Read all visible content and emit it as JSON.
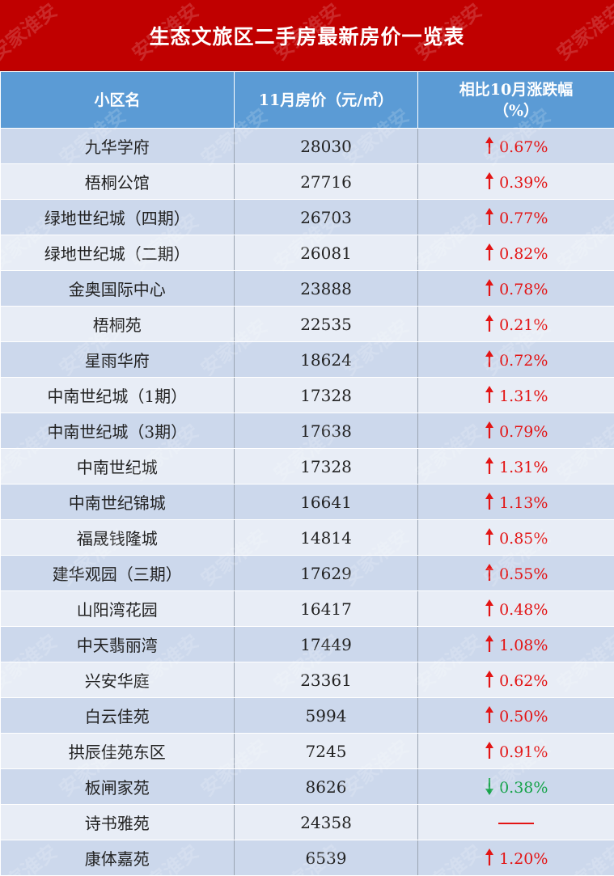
{
  "title": "生态文旅区二手房最新房价一览表",
  "headers": {
    "name": "小区名",
    "price": "11月房价（元/㎡）",
    "change_line1": "相比10月涨跌幅",
    "change_line2": "（%）"
  },
  "rows": [
    {
      "name": "九华学府",
      "price": "28030",
      "change": "0.67%",
      "direction": "up"
    },
    {
      "name": "梧桐公馆",
      "price": "27716",
      "change": "0.39%",
      "direction": "up"
    },
    {
      "name": "绿地世纪城（四期）",
      "price": "26703",
      "change": "0.77%",
      "direction": "up"
    },
    {
      "name": "绿地世纪城（二期）",
      "price": "26081",
      "change": "0.82%",
      "direction": "up"
    },
    {
      "name": "金奥国际中心",
      "price": "23888",
      "change": "0.78%",
      "direction": "up"
    },
    {
      "name": "梧桐苑",
      "price": "22535",
      "change": "0.21%",
      "direction": "up"
    },
    {
      "name": "星雨华府",
      "price": "18624",
      "change": "0.72%",
      "direction": "up"
    },
    {
      "name": "中南世纪城（1期）",
      "price": "17328",
      "change": "1.31%",
      "direction": "up"
    },
    {
      "name": "中南世纪城（3期）",
      "price": "17638",
      "change": "0.79%",
      "direction": "up"
    },
    {
      "name": "中南世纪城",
      "price": "17328",
      "change": "1.31%",
      "direction": "up"
    },
    {
      "name": "中南世纪锦城",
      "price": "16641",
      "change": "1.13%",
      "direction": "up"
    },
    {
      "name": "福晟钱隆城",
      "price": "14814",
      "change": "0.85%",
      "direction": "up"
    },
    {
      "name": "建华观园（三期）",
      "price": "17629",
      "change": "0.55%",
      "direction": "up"
    },
    {
      "name": "山阳湾花园",
      "price": "16417",
      "change": "0.48%",
      "direction": "up"
    },
    {
      "name": "中天翡丽湾",
      "price": "17449",
      "change": "1.08%",
      "direction": "up"
    },
    {
      "name": "兴安华庭",
      "price": "23361",
      "change": "0.62%",
      "direction": "up"
    },
    {
      "name": "白云佳苑",
      "price": "5994",
      "change": "0.50%",
      "direction": "up"
    },
    {
      "name": "拱辰佳苑东区",
      "price": "7245",
      "change": "0.91%",
      "direction": "up"
    },
    {
      "name": "板闸家苑",
      "price": "8626",
      "change": "0.38%",
      "direction": "down"
    },
    {
      "name": "诗书雅苑",
      "price": "24358",
      "change": "",
      "direction": "flat"
    },
    {
      "name": "康体嘉苑",
      "price": "6539",
      "change": "1.20%",
      "direction": "up"
    }
  ],
  "watermark": "安家淮安",
  "colors": {
    "title_bg": "#c00000",
    "header_bg": "#5b9bd5",
    "row_odd": "#ccd8ec",
    "row_even": "#e8edf6",
    "up": "#e31414",
    "down": "#16a34a"
  }
}
